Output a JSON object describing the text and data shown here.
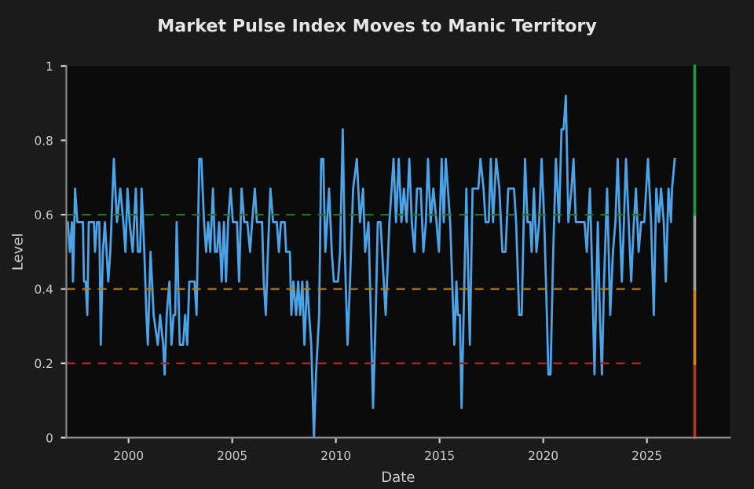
{
  "chart_data": {
    "type": "line",
    "title": "Market Pulse Index Moves to Manic Territory",
    "xlabel": "Date",
    "ylabel": "Level",
    "xlim": [
      1997.0,
      2029.0
    ],
    "xticks": [
      2000,
      2005,
      2010,
      2015,
      2020,
      2025
    ],
    "ylim": [
      0,
      1
    ],
    "yticks": [
      0,
      0.2,
      0.4,
      0.6,
      0.8,
      1
    ],
    "grid": false,
    "legend": false,
    "marker": "none",
    "line_style": "solid",
    "series": [
      {
        "color": "#4ca3e6",
        "x": [
          1997.07,
          1997.17,
          1997.27,
          1997.32,
          1997.42,
          1997.53,
          1997.8,
          1997.85,
          1997.93,
          1998.01,
          1998.08,
          1998.33,
          1998.38,
          1998.48,
          1998.59,
          1998.66,
          1998.76,
          1998.86,
          1999.02,
          1999.12,
          1999.29,
          1999.44,
          1999.6,
          1999.75,
          1999.85,
          1999.95,
          2000.05,
          2000.2,
          2000.35,
          2000.45,
          2000.56,
          2000.63,
          2000.76,
          2000.86,
          2000.93,
          2001.06,
          2001.21,
          2001.41,
          2001.52,
          2001.67,
          2001.74,
          2001.84,
          2001.97,
          2002.07,
          2002.17,
          2002.25,
          2002.32,
          2002.47,
          2002.63,
          2002.73,
          2002.83,
          2002.93,
          2003.18,
          2003.28,
          2003.41,
          2003.51,
          2003.64,
          2003.74,
          2003.84,
          2003.94,
          2004.07,
          2004.17,
          2004.27,
          2004.37,
          2004.49,
          2004.6,
          2004.7,
          2004.8,
          2004.92,
          2005.03,
          2005.23,
          2005.33,
          2005.45,
          2005.58,
          2005.73,
          2005.86,
          2005.96,
          2006.09,
          2006.19,
          2006.44,
          2006.52,
          2006.62,
          2006.72,
          2006.84,
          2006.97,
          2007.15,
          2007.25,
          2007.35,
          2007.53,
          2007.6,
          2007.78,
          2007.85,
          2007.95,
          2008.08,
          2008.18,
          2008.28,
          2008.38,
          2008.48,
          2008.61,
          2008.71,
          2008.81,
          2008.94,
          2009.04,
          2009.19,
          2009.29,
          2009.39,
          2009.49,
          2009.67,
          2009.8,
          2009.9,
          2010.1,
          2010.2,
          2010.33,
          2010.43,
          2010.56,
          2010.68,
          2010.83,
          2011.01,
          2011.16,
          2011.31,
          2011.41,
          2011.57,
          2011.72,
          2011.79,
          2011.92,
          2012.02,
          2012.15,
          2012.4,
          2012.58,
          2012.78,
          2012.9,
          2013.03,
          2013.16,
          2013.28,
          2013.41,
          2013.54,
          2013.66,
          2013.79,
          2013.91,
          2014.09,
          2014.22,
          2014.34,
          2014.44,
          2014.57,
          2014.7,
          2014.85,
          2014.97,
          2015.1,
          2015.2,
          2015.3,
          2015.51,
          2015.61,
          2015.71,
          2015.81,
          2015.88,
          2015.98,
          2016.06,
          2016.16,
          2016.29,
          2016.39,
          2016.46,
          2016.59,
          2016.72,
          2016.87,
          2016.97,
          2017.12,
          2017.22,
          2017.37,
          2017.47,
          2017.58,
          2017.73,
          2017.88,
          2018.03,
          2018.18,
          2018.31,
          2018.59,
          2018.69,
          2018.84,
          2018.96,
          2019.12,
          2019.24,
          2019.37,
          2019.44,
          2019.55,
          2019.67,
          2019.8,
          2019.92,
          2020.05,
          2020.13,
          2020.25,
          2020.35,
          2020.48,
          2020.61,
          2020.76,
          2020.88,
          2020.98,
          2021.09,
          2021.21,
          2021.36,
          2021.46,
          2021.57,
          2021.99,
          2022.1,
          2022.25,
          2022.37,
          2022.47,
          2022.63,
          2022.73,
          2022.83,
          2022.93,
          2023.08,
          2023.23,
          2023.36,
          2023.48,
          2023.59,
          2023.69,
          2023.79,
          2023.89,
          2023.99,
          2024.12,
          2024.24,
          2024.37,
          2024.47,
          2024.6,
          2024.72,
          2024.87,
          2025.05,
          2025.2,
          2025.33,
          2025.45,
          2025.58,
          2025.68,
          2025.81,
          2025.91,
          2026.04,
          2026.16,
          2026.21,
          2026.34
        ],
        "values": [
          0.58,
          0.5,
          0.58,
          0.42,
          0.67,
          0.58,
          0.58,
          0.42,
          0.42,
          0.33,
          0.58,
          0.58,
          0.5,
          0.58,
          0.58,
          0.25,
          0.5,
          0.58,
          0.42,
          0.5,
          0.75,
          0.58,
          0.67,
          0.58,
          0.5,
          0.67,
          0.58,
          0.5,
          0.67,
          0.5,
          0.5,
          0.67,
          0.5,
          0.33,
          0.25,
          0.5,
          0.33,
          0.25,
          0.33,
          0.25,
          0.17,
          0.33,
          0.42,
          0.25,
          0.33,
          0.33,
          0.58,
          0.25,
          0.25,
          0.33,
          0.25,
          0.42,
          0.42,
          0.33,
          0.75,
          0.75,
          0.58,
          0.5,
          0.58,
          0.5,
          0.67,
          0.5,
          0.5,
          0.58,
          0.42,
          0.58,
          0.42,
          0.58,
          0.67,
          0.58,
          0.58,
          0.42,
          0.67,
          0.58,
          0.58,
          0.5,
          0.58,
          0.67,
          0.58,
          0.58,
          0.42,
          0.33,
          0.5,
          0.67,
          0.58,
          0.58,
          0.5,
          0.58,
          0.58,
          0.5,
          0.5,
          0.33,
          0.42,
          0.33,
          0.42,
          0.33,
          0.42,
          0.25,
          0.42,
          0.33,
          0.25,
          0.0,
          0.17,
          0.33,
          0.75,
          0.75,
          0.5,
          0.67,
          0.5,
          0.42,
          0.42,
          0.5,
          0.83,
          0.5,
          0.25,
          0.42,
          0.67,
          0.75,
          0.58,
          0.67,
          0.5,
          0.58,
          0.25,
          0.08,
          0.33,
          0.58,
          0.58,
          0.33,
          0.58,
          0.75,
          0.58,
          0.75,
          0.58,
          0.67,
          0.58,
          0.75,
          0.58,
          0.5,
          0.67,
          0.67,
          0.5,
          0.58,
          0.75,
          0.58,
          0.67,
          0.58,
          0.5,
          0.75,
          0.58,
          0.75,
          0.58,
          0.42,
          0.25,
          0.42,
          0.33,
          0.33,
          0.08,
          0.33,
          0.67,
          0.42,
          0.25,
          0.67,
          0.67,
          0.67,
          0.75,
          0.67,
          0.58,
          0.58,
          0.75,
          0.58,
          0.75,
          0.67,
          0.5,
          0.5,
          0.67,
          0.67,
          0.58,
          0.33,
          0.33,
          0.75,
          0.58,
          0.58,
          0.5,
          0.67,
          0.5,
          0.58,
          0.75,
          0.58,
          0.42,
          0.17,
          0.17,
          0.5,
          0.75,
          0.58,
          0.83,
          0.83,
          0.92,
          0.58,
          0.67,
          0.75,
          0.58,
          0.58,
          0.5,
          0.67,
          0.42,
          0.17,
          0.58,
          0.33,
          0.17,
          0.42,
          0.67,
          0.33,
          0.5,
          0.58,
          0.75,
          0.58,
          0.42,
          0.58,
          0.75,
          0.58,
          0.42,
          0.58,
          0.67,
          0.5,
          0.58,
          0.58,
          0.75,
          0.58,
          0.33,
          0.67,
          0.58,
          0.67,
          0.58,
          0.42,
          0.67,
          0.58,
          0.67,
          0.75
        ]
      }
    ],
    "ref_lines": [
      {
        "axis": "y",
        "value": 0.2,
        "color": "#a8231e",
        "line_style": "dashed"
      },
      {
        "axis": "y",
        "value": 0.4,
        "color": "#c07c00",
        "line_style": "dashed"
      },
      {
        "axis": "y",
        "value": 0.6,
        "color": "#2e6b2e",
        "line_style": "dashed"
      }
    ]
  }
}
